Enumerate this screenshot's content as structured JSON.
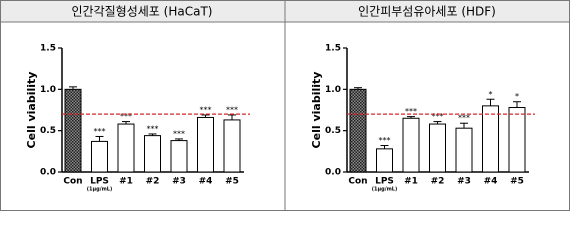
{
  "chart_data": [
    {
      "type": "bar",
      "title": "인간각질형성세포 (HaCaT)",
      "y_label": "Cell viability",
      "categories": [
        "Con",
        "LPS",
        "#1",
        "#2",
        "#3",
        "#4",
        "#5"
      ],
      "category_sublabels": [
        null,
        "(1μg/mL)",
        null,
        null,
        null,
        null,
        null
      ],
      "values": [
        1.0,
        0.37,
        0.58,
        0.44,
        0.38,
        0.66,
        0.63
      ],
      "errors": [
        0.03,
        0.06,
        0.03,
        0.02,
        0.02,
        0.03,
        0.06
      ],
      "annotations": [
        null,
        "***",
        "***",
        "***",
        "***",
        "***",
        "***"
      ],
      "ylim": [
        0,
        1.5
      ],
      "yticks": [
        {
          "value": 0,
          "label": "0.0"
        },
        0.5,
        {
          "value": 1,
          "label": "1.0"
        },
        1.5
      ],
      "reference_line": {
        "value": 0.7,
        "color": "#d62728"
      },
      "color": "#ffffff",
      "first_bar_hatched": true
    },
    {
      "type": "bar",
      "title": "인간피부섬유아세포 (HDF)",
      "y_label": "Cell viability",
      "categories": [
        "Con",
        "LPS",
        "#1",
        "#2",
        "#3",
        "#4",
        "#5"
      ],
      "category_sublabels": [
        null,
        "(1μg/mL)",
        null,
        null,
        null,
        null,
        null
      ],
      "values": [
        1.0,
        0.28,
        0.65,
        0.58,
        0.53,
        0.8,
        0.78
      ],
      "errors": [
        0.02,
        0.04,
        0.02,
        0.03,
        0.06,
        0.08,
        0.07
      ],
      "annotations": [
        null,
        "***",
        "***",
        "***",
        "***",
        "*",
        "*"
      ],
      "ylim": [
        0,
        1.5
      ],
      "yticks": [
        {
          "value": 0,
          "label": "0.0"
        },
        0.5,
        {
          "value": 1,
          "label": "1.0"
        },
        1.5
      ],
      "reference_line": {
        "value": 0.7,
        "color": "#d62728"
      },
      "color": "#ffffff",
      "first_bar_hatched": true
    }
  ]
}
